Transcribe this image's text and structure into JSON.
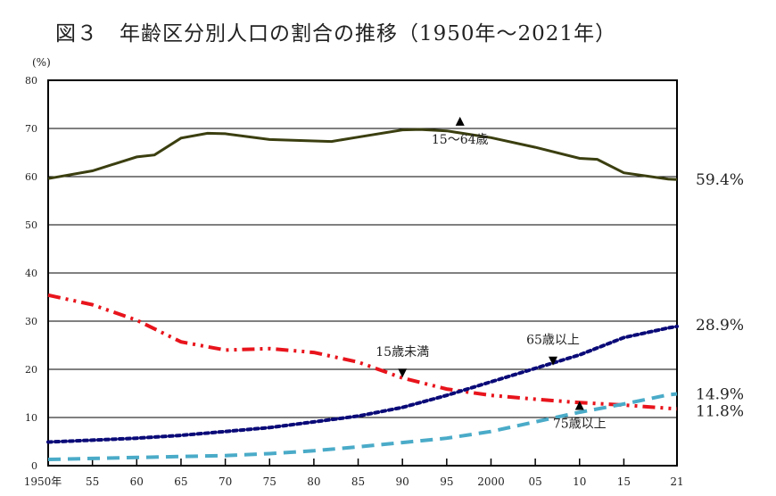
{
  "chart_data": {
    "type": "line",
    "title": "図３　年齢区分別人口の割合の推移（1950年～2021年）",
    "ylabel": "(%)",
    "ylim": [
      0,
      80
    ],
    "yticks": [
      0,
      10,
      20,
      30,
      40,
      50,
      60,
      70,
      80
    ],
    "xlim": [
      1950,
      2021
    ],
    "xticks": [
      {
        "v": 1950,
        "l": "1950年"
      },
      {
        "v": 1955,
        "l": "55"
      },
      {
        "v": 1960,
        "l": "60"
      },
      {
        "v": 1965,
        "l": "65"
      },
      {
        "v": 1970,
        "l": "70"
      },
      {
        "v": 1975,
        "l": "75"
      },
      {
        "v": 1980,
        "l": "80"
      },
      {
        "v": 1985,
        "l": "85"
      },
      {
        "v": 1990,
        "l": "90"
      },
      {
        "v": 1995,
        "l": "95"
      },
      {
        "v": 2000,
        "l": "2000"
      },
      {
        "v": 2005,
        "l": "05"
      },
      {
        "v": 2010,
        "l": "10"
      },
      {
        "v": 2015,
        "l": "15"
      },
      {
        "v": 2021,
        "l": "21"
      }
    ],
    "grid": true,
    "series": [
      {
        "name": "15～64歳",
        "color": "#3b3f10",
        "style": "solid",
        "end_label": "59.4%",
        "label_at": [
          1996.5,
          66.5
        ],
        "arrow": "up",
        "x": [
          1950,
          1955,
          1960,
          1962,
          1965,
          1968,
          1970,
          1975,
          1980,
          1982,
          1985,
          1990,
          1992,
          1995,
          2000,
          2005,
          2010,
          2012,
          2015,
          2020,
          2021
        ],
        "y": [
          59.6,
          61.2,
          64.1,
          64.5,
          68.0,
          69.0,
          68.9,
          67.7,
          67.4,
          67.3,
          68.2,
          69.7,
          69.8,
          69.5,
          68.1,
          66.1,
          63.8,
          63.6,
          60.8,
          59.5,
          59.4
        ]
      },
      {
        "name": "15歳未満",
        "color": "#e8141c",
        "style": "dashdotdot",
        "end_label": "11.8%",
        "label_at": [
          1990,
          22
        ],
        "arrow": "down",
        "x": [
          1950,
          1955,
          1960,
          1965,
          1970,
          1975,
          1980,
          1985,
          1990,
          1995,
          2000,
          2005,
          2010,
          2015,
          2020,
          2021
        ],
        "y": [
          35.4,
          33.4,
          30.2,
          25.7,
          24.0,
          24.3,
          23.5,
          21.5,
          18.2,
          15.9,
          14.6,
          13.8,
          13.1,
          12.6,
          11.9,
          11.8
        ]
      },
      {
        "name": "65歳以上",
        "color": "#0a0a78",
        "style": "dotted",
        "end_label": "28.9%",
        "label_at": [
          2007,
          24.5
        ],
        "arrow": "down",
        "x": [
          1950,
          1955,
          1960,
          1965,
          1970,
          1975,
          1980,
          1985,
          1990,
          1995,
          2000,
          2005,
          2010,
          2015,
          2020,
          2021
        ],
        "y": [
          4.9,
          5.3,
          5.7,
          6.3,
          7.1,
          7.9,
          9.1,
          10.3,
          12.1,
          14.6,
          17.4,
          20.2,
          23.0,
          26.6,
          28.6,
          28.9
        ]
      },
      {
        "name": "75歳以上",
        "color": "#4aabc8",
        "style": "dashed",
        "end_label": "14.9%",
        "label_at": [
          2010,
          7.5
        ],
        "arrow": "up",
        "x": [
          1950,
          1955,
          1960,
          1965,
          1970,
          1975,
          1980,
          1985,
          1990,
          1995,
          2000,
          2005,
          2010,
          2015,
          2020,
          2021
        ],
        "y": [
          1.3,
          1.5,
          1.7,
          1.9,
          2.1,
          2.5,
          3.1,
          3.9,
          4.8,
          5.7,
          7.1,
          9.1,
          11.1,
          12.8,
          14.7,
          14.9
        ]
      }
    ]
  }
}
